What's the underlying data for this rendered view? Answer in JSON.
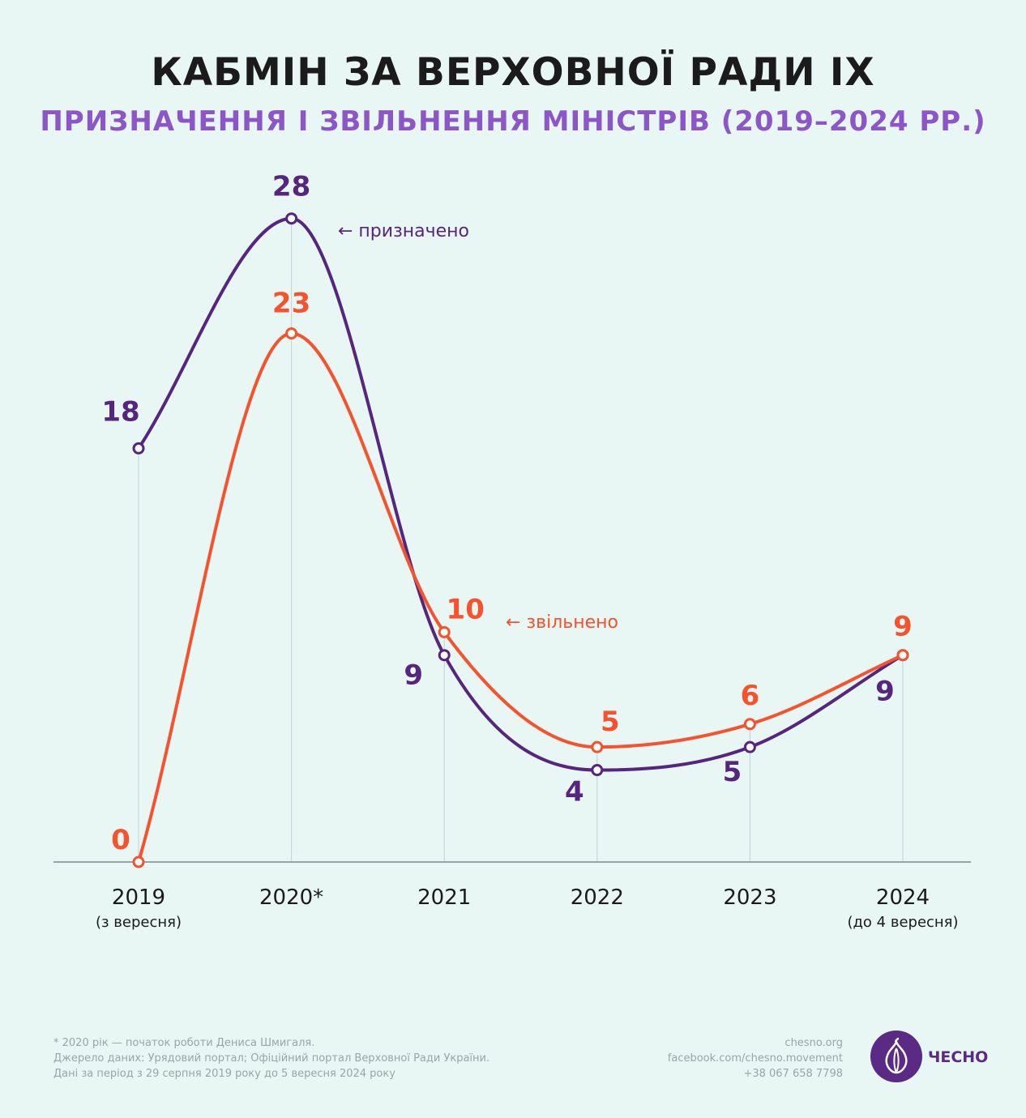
{
  "header": {
    "title": "КАБМІН ЗА ВЕРХОВНОЇ РАДИ IX",
    "subtitle": "ПРИЗНАЧЕННЯ І ЗВІЛЬНЕННЯ МІНІСТРІВ (2019–2024 РР.)"
  },
  "chart_data": {
    "type": "line",
    "categories": [
      "2019",
      "2020*",
      "2021",
      "2022",
      "2023",
      "2024"
    ],
    "category_notes": [
      "(з вересня)",
      "",
      "",
      "",
      "",
      "(до 4 вересня)"
    ],
    "series": [
      {
        "name": "призначено",
        "values": [
          18,
          28,
          9,
          4,
          5,
          9
        ],
        "color": "#56267e"
      },
      {
        "name": "звільнено",
        "values": [
          0,
          23,
          10,
          5,
          6,
          9
        ],
        "color": "#f5522e"
      }
    ],
    "series_labels": [
      "← призначено",
      "← звільнено"
    ],
    "ylim": [
      0,
      30
    ],
    "smooth": true,
    "grid": "vertical"
  },
  "footer": {
    "notes": [
      "*   2020 рік — початок роботи Дениса Шмигаля.",
      "Джерело даних: Урядовий портал; Офіційний портал Верховної Ради України.",
      "Дані за період з 29 серпня 2019 року до 5 вересня 2024 року"
    ],
    "contacts": [
      "chesno.org",
      "facebook.com/chesno.movement",
      "+38 067 658 7798"
    ],
    "logo_text": "ЧЕСНО"
  }
}
